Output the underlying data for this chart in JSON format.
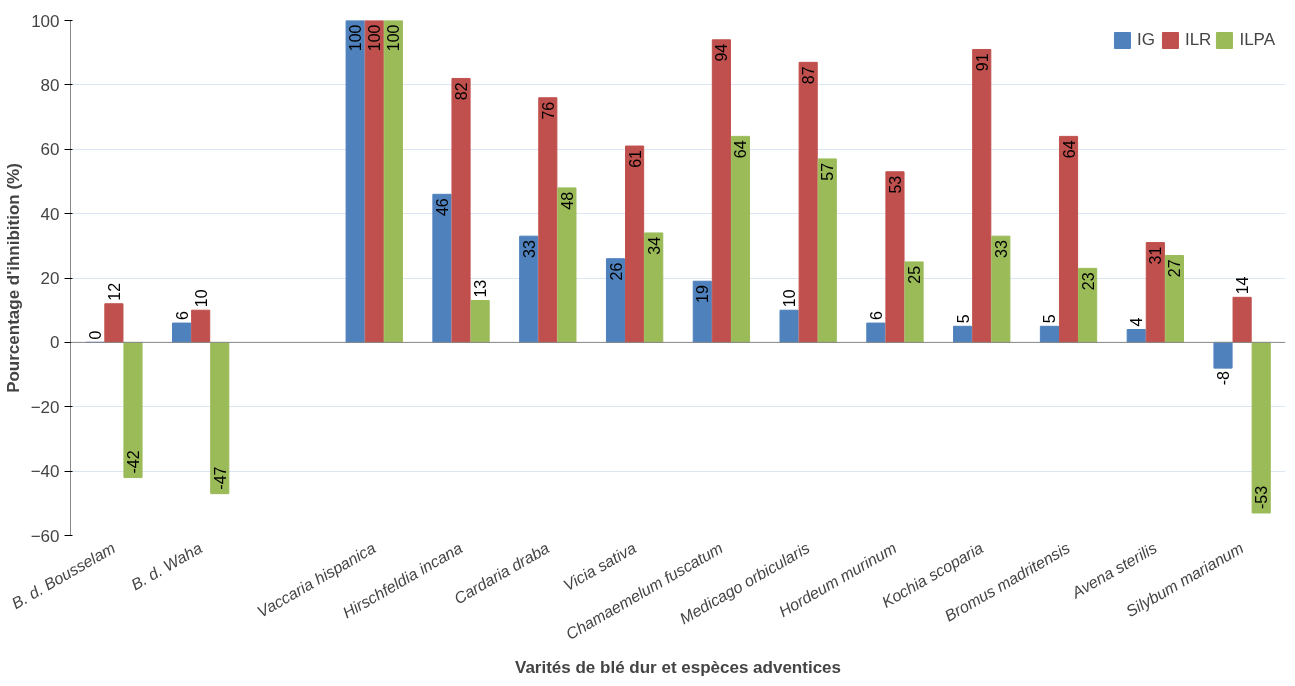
{
  "chart_data": {
    "type": "bar",
    "xlabel": "Varités de blé dur et espèces adventices",
    "ylabel": "Pourcentage d'ihnibition (%)",
    "categories": [
      "B. d. Bousselam",
      "B. d. Waha",
      null,
      "Vaccaria hispanica",
      "Hirschfeldia incana",
      "Cardaria draba",
      "Vicia sativa",
      "Chamaemelum fuscatum",
      "Medicago orbicularis",
      "Hordeum murinum",
      "Kochia scoparia",
      "Bromus madritensis",
      "Avena sterilis",
      "Silybum marianum"
    ],
    "series": [
      {
        "name": "IG",
        "color": "#4f81bd",
        "values": [
          0,
          6,
          null,
          100,
          46,
          33,
          26,
          19,
          10,
          6,
          5,
          5,
          4,
          -8
        ]
      },
      {
        "name": "ILR",
        "color": "#c0504d",
        "values": [
          12,
          10,
          null,
          100,
          82,
          76,
          61,
          94,
          87,
          53,
          91,
          64,
          31,
          14
        ]
      },
      {
        "name": "ILPA",
        "color": "#9bbb59",
        "values": [
          -42,
          -47,
          null,
          100,
          13,
          48,
          34,
          64,
          57,
          25,
          33,
          23,
          27,
          -53
        ]
      }
    ],
    "ylim": [
      -60,
      100
    ],
    "yticks": [
      -60,
      -40,
      -20,
      0,
      20,
      40,
      60,
      80,
      100
    ],
    "grid": "y",
    "legend": "top right",
    "data_labels": true
  }
}
